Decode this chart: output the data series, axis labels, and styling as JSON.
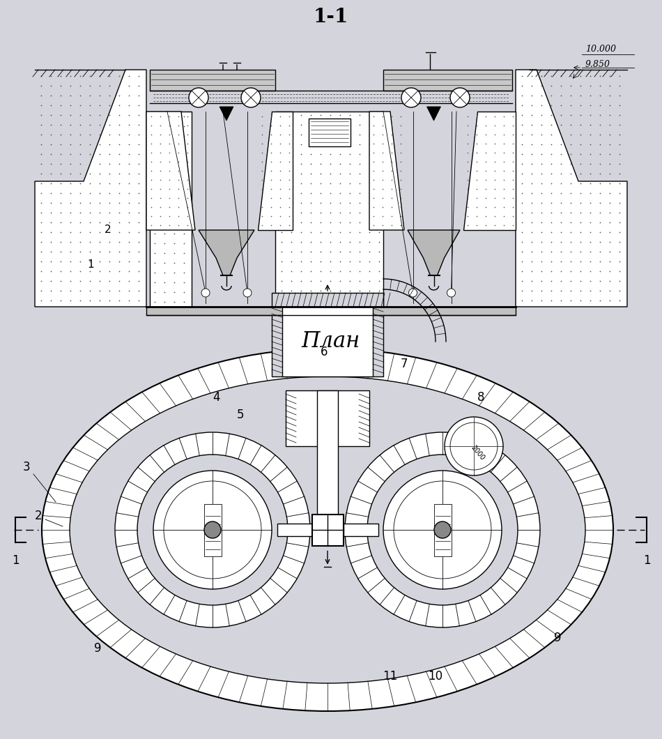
{
  "bg_color": "#d4d4dc",
  "white": "#ffffff",
  "black": "#000000",
  "fig_width": 9.5,
  "fig_height": 10.6,
  "title_section": "1-1",
  "title_plan": "План",
  "label_10000": "10.000",
  "label_9850": "9.850",
  "label_1": "1",
  "label_2": "2",
  "label_3": "3",
  "label_4": "4",
  "label_5": "5",
  "label_6": "6",
  "label_7": "7",
  "label_8": "8",
  "label_9": "9",
  "label_10": "10",
  "label_11": "11",
  "label_2000": "2000"
}
